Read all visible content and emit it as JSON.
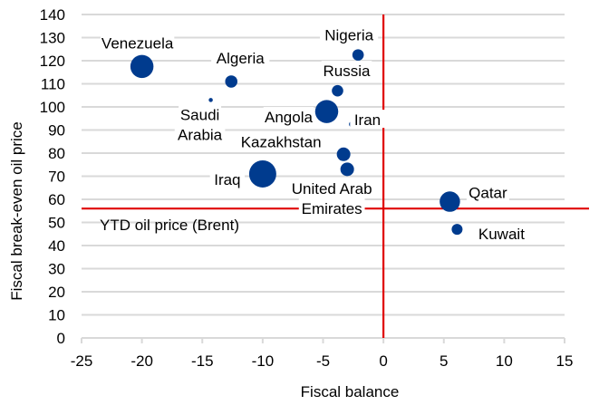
{
  "chart_data": {
    "type": "scatter",
    "subtype": "bubble",
    "title": "",
    "xlabel": "Fiscal balance",
    "ylabel": "Fiscal break-even oil price",
    "xlim": [
      -25,
      15
    ],
    "ylim": [
      0,
      140
    ],
    "xticks": [
      -25,
      -20,
      -15,
      -10,
      -5,
      0,
      5,
      10,
      15
    ],
    "yticks": [
      0,
      10,
      20,
      30,
      40,
      50,
      60,
      70,
      80,
      90,
      100,
      110,
      120,
      130,
      140
    ],
    "xtick_labels": [
      "-25",
      "-20",
      "-15",
      "-10",
      "-5",
      "0",
      "5",
      "10",
      "15"
    ],
    "ytick_labels": [
      "0",
      "10",
      "20",
      "30",
      "40",
      "50",
      "60",
      "70",
      "80",
      "90",
      "100",
      "110",
      "120",
      "130",
      "140"
    ],
    "grid": "horizontal",
    "legend": "none",
    "colors": {
      "bubble": "#003b8e",
      "reference": "#e00000",
      "grid": "#d9d9d9"
    },
    "points": [
      {
        "name": "Venezuela",
        "label_lines": [
          "Venezuela"
        ],
        "x": -20.0,
        "y": 117.5,
        "size": 0.85
      },
      {
        "name": "Algeria",
        "label_lines": [
          "Algeria"
        ],
        "x": -12.6,
        "y": 111,
        "size": 0.45
      },
      {
        "name": "Saudi Arabia",
        "label_lines": [
          "Saudi",
          "Arabia"
        ],
        "x": -14.3,
        "y": 103,
        "size": 0.15
      },
      {
        "name": "Nigeria",
        "label_lines": [
          "Nigeria"
        ],
        "x": -2.1,
        "y": 122.5,
        "size": 0.42
      },
      {
        "name": "Russia",
        "label_lines": [
          "Russia"
        ],
        "x": -3.8,
        "y": 107,
        "size": 0.42
      },
      {
        "name": "Angola",
        "label_lines": [
          "Angola"
        ],
        "x": -4.7,
        "y": 98,
        "size": 0.85
      },
      {
        "name": "Iran",
        "label_lines": [
          "Iran"
        ],
        "x": -2.6,
        "y": 92.5,
        "size": 0.22
      },
      {
        "name": "Kazakhstan",
        "label_lines": [
          "Kazakhstan"
        ],
        "x": -3.3,
        "y": 79.5,
        "size": 0.5
      },
      {
        "name": "United Arab Emirates",
        "label_lines": [
          "United Arab",
          "Emirates"
        ],
        "x": -3.0,
        "y": 73,
        "size": 0.5
      },
      {
        "name": "Iraq",
        "label_lines": [
          "Iraq"
        ],
        "x": -10.0,
        "y": 71,
        "size": 1.0
      },
      {
        "name": "Qatar",
        "label_lines": [
          "Qatar"
        ],
        "x": 5.5,
        "y": 59,
        "size": 0.75
      },
      {
        "name": "Kuwait",
        "label_lines": [
          "Kuwait"
        ],
        "x": 6.1,
        "y": 47,
        "size": 0.4
      }
    ],
    "reference_lines": [
      {
        "name": "YTD oil price (Brent)",
        "orientation": "horizontal",
        "value": 56,
        "label": "YTD oil price (Brent)"
      },
      {
        "name": "zero fiscal balance",
        "orientation": "vertical",
        "value": 0,
        "label": ""
      }
    ]
  }
}
